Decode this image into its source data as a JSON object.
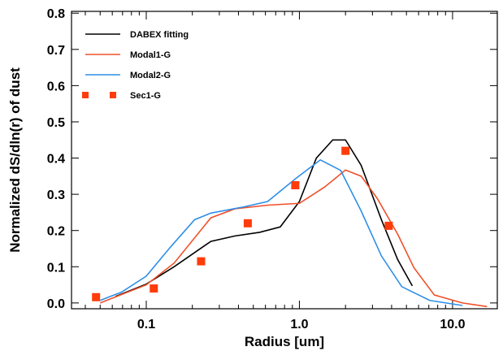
{
  "chart_data": {
    "type": "line",
    "xlabel": "Radius [um]",
    "ylabel": "Normalized dS/dln(r) of dust",
    "xscale": "log",
    "xlim": [
      0.0325,
      19.6
    ],
    "ylim": [
      -0.016,
      0.805
    ],
    "xticks": [
      0.1,
      {
        "value": 1,
        "label": "1.0"
      },
      {
        "value": 10,
        "label": "10.0"
      }
    ],
    "xminorticks": [
      0.04,
      0.05,
      0.06,
      0.07,
      0.08,
      0.09,
      0.2,
      0.3,
      0.4,
      0.5,
      0.6,
      0.7,
      0.8,
      0.9,
      2,
      3,
      4,
      5,
      6,
      7,
      8,
      9
    ],
    "yticks": [
      {
        "value": 0,
        "label": "0.0"
      },
      0.1,
      0.2,
      0.3,
      0.4,
      0.5,
      0.6,
      0.7,
      0.8
    ],
    "legend": "upper left",
    "series": [
      {
        "name": "DABEX fitting",
        "color": "#000000",
        "style": "line",
        "x": [
          0.063,
          0.1,
          0.152,
          0.264,
          0.38,
          0.55,
          0.75,
          1.0,
          1.29,
          1.65,
          2.0,
          2.53,
          3.43,
          4.38,
          5.46
        ],
        "values": [
          0.018,
          0.052,
          0.1,
          0.17,
          0.185,
          0.195,
          0.21,
          0.28,
          0.4,
          0.45,
          0.45,
          0.38,
          0.23,
          0.12,
          0.047
        ]
      },
      {
        "name": "Modal1-G",
        "color": "#f0502a",
        "style": "line",
        "x": [
          0.05,
          0.1,
          0.152,
          0.264,
          0.38,
          0.62,
          1.0,
          1.46,
          2.0,
          2.53,
          3.23,
          4.38,
          5.6,
          7.6,
          11.6,
          16.8
        ],
        "values": [
          0.0,
          0.05,
          0.11,
          0.235,
          0.26,
          0.27,
          0.275,
          0.32,
          0.367,
          0.35,
          0.288,
          0.19,
          0.097,
          0.022,
          0.0,
          -0.01
        ]
      },
      {
        "name": "Modal2-G",
        "color": "#2f8fe8",
        "style": "line",
        "x": [
          0.05,
          0.069,
          0.1,
          0.143,
          0.207,
          0.264,
          0.43,
          0.62,
          0.95,
          1.37,
          1.86,
          2.53,
          3.43,
          4.66,
          7.1,
          11.6
        ],
        "values": [
          0.007,
          0.03,
          0.074,
          0.153,
          0.23,
          0.248,
          0.265,
          0.28,
          0.344,
          0.395,
          0.366,
          0.254,
          0.13,
          0.045,
          0.007,
          -0.007
        ]
      },
      {
        "name": "Sec1-G",
        "color": "#ff3c0a",
        "style": "marker",
        "x": [
          0.047,
          0.112,
          0.228,
          0.46,
          0.94,
          2.0,
          3.83
        ],
        "values": [
          0.016,
          0.04,
          0.115,
          0.22,
          0.325,
          0.42,
          0.213
        ]
      }
    ]
  }
}
